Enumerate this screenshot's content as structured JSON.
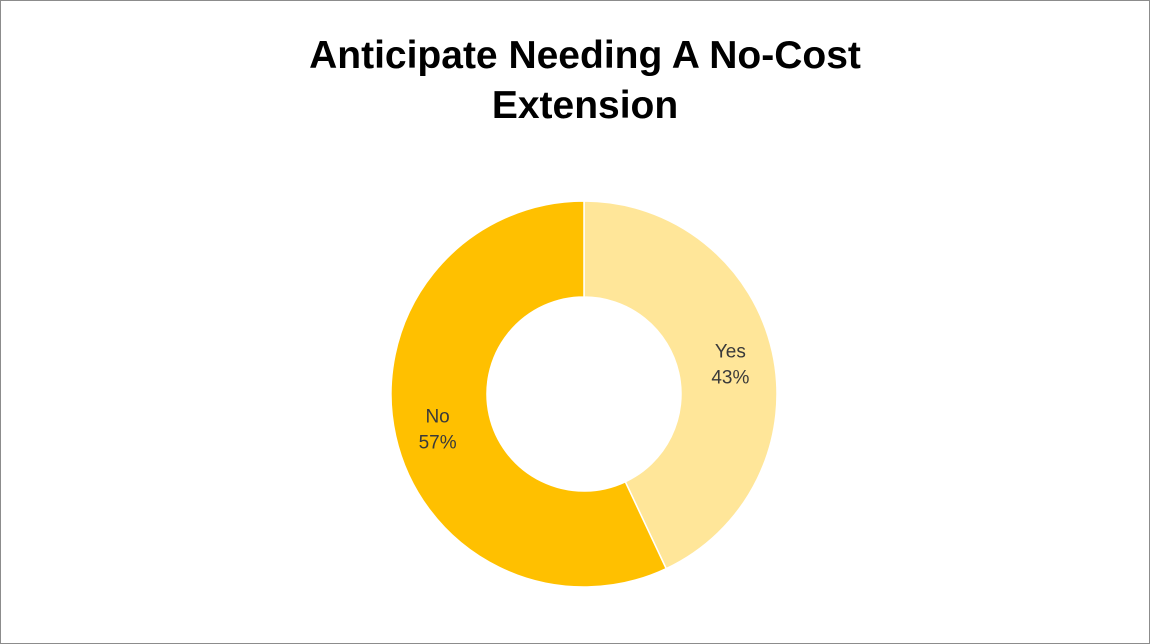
{
  "chart_data": {
    "type": "pie",
    "variant": "donut",
    "title_lines": [
      "Anticipate Needing A No-Cost",
      "Extension"
    ],
    "slices": [
      {
        "name": "Yes",
        "value": 43,
        "label": "43%",
        "color": "#ffe699"
      },
      {
        "name": "No",
        "value": 57,
        "label": "57%",
        "color": "#ffc000"
      }
    ],
    "legend": "none",
    "data_labels": "category and percentage inside slices"
  }
}
